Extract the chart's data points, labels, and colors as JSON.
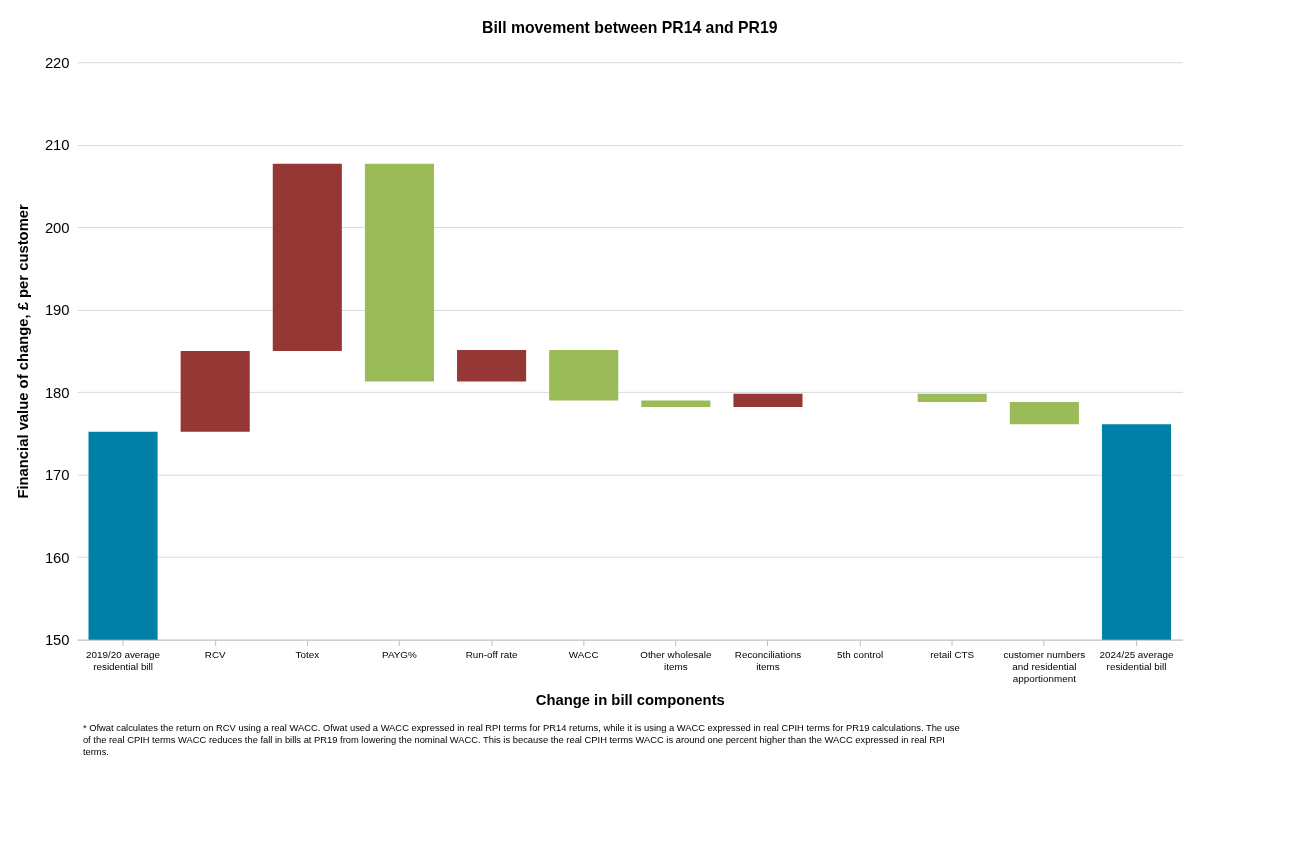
{
  "chart_data": {
    "type": "bar",
    "title": "Bill movement between PR14 and PR19",
    "xlabel": "Change in bill components",
    "ylabel": "Financial value of change, £ per customer",
    "categories": [
      "2019/20 average\nresidential bill",
      "RCV",
      "Totex",
      "PAYG%",
      "Run-off rate",
      "WACC",
      "Other wholesale\nitems",
      "Reconciliations\nitems",
      "5th control",
      "retail CTS",
      "customer numbers\nand residential\napportionment",
      "2024/25 average\nresidential bill"
    ],
    "base": [
      null,
      175.2,
      185.0,
      207.7,
      181.3,
      185.1,
      179.0,
      178.2,
      null,
      179.8,
      178.8,
      null
    ],
    "values": [
      175.2,
      9.8,
      22.7,
      -26.4,
      3.8,
      -6.1,
      -0.8,
      1.6,
      null,
      -1.0,
      -2.7,
      176.1
    ],
    "colors": [
      "#0080a6",
      "#953735",
      "#953735",
      "#9bbb59",
      "#953735",
      "#9bbb59",
      "#9bbb59",
      "#953735",
      null,
      "#9bbb59",
      "#9bbb59",
      "#0080a6"
    ],
    "ylim": [
      150,
      220
    ],
    "yticks": [
      150,
      160,
      170,
      180,
      190,
      200,
      210,
      220
    ],
    "grid": "y",
    "annotations": [
      "* Ofwat calculates the return on RCV using a real WACC. Ofwat used a WACC expressed in real RPI terms for PR14 returns, while it is using a WACC expressed in real CPIH terms for PR19 calculations. The use of the real CPIH terms WACC reduces the fall in bills at PR19 from lowering the nominal WACC. This is because the real CPIH terms WACC is around one percent higher than the WACC expressed in real RPI terms."
    ]
  }
}
